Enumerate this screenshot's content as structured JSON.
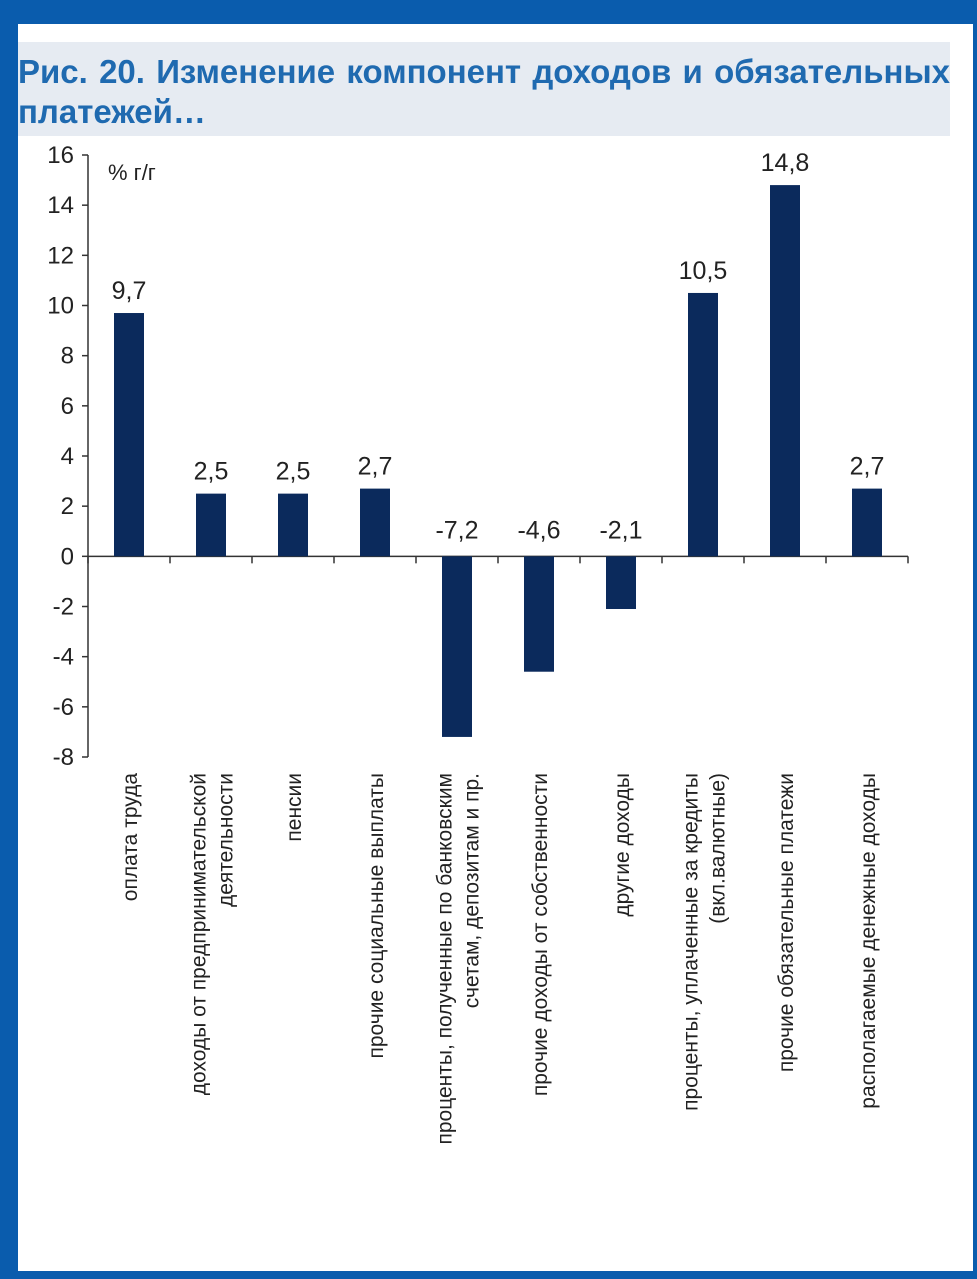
{
  "title": "Рис. 20. Изменение компонент доходов и обязательных платежей…",
  "colors": {
    "frame": "#0a5cad",
    "title": "#1f6ab0",
    "title_band": "#e6ebf2",
    "bar": "#0b2a5c",
    "axis": "#333333",
    "text": "#222222"
  },
  "chart_data": {
    "type": "bar",
    "unit_label": "% г/г",
    "categories": [
      [
        "оплата труда"
      ],
      [
        "доходы от предпринимательской",
        "деятельности"
      ],
      [
        "пенсии"
      ],
      [
        "прочие социальные выплаты"
      ],
      [
        "проценты, полученные по банковским",
        "счетам, депозитам и пр."
      ],
      [
        "прочие доходы от собственности"
      ],
      [
        "другие доходы"
      ],
      [
        "проценты, уплаченные за кредиты",
        "(вкл.валютные)"
      ],
      [
        "прочие обязательные платежи"
      ],
      [
        "располагаемые денежные доходы"
      ]
    ],
    "values": [
      9.7,
      2.5,
      2.5,
      2.7,
      -7.2,
      -4.6,
      -2.1,
      10.5,
      14.8,
      2.7
    ],
    "value_labels": [
      "9,7",
      "2,5",
      "2,5",
      "2,7",
      "-7,2",
      "-4,6",
      "-2,1",
      "10,5",
      "14,8",
      "2,7"
    ],
    "ylim": [
      -8,
      16
    ],
    "yticks": [
      16,
      14,
      12,
      10,
      8,
      6,
      4,
      2,
      0,
      -2,
      -4,
      -6,
      -8
    ],
    "grid": false,
    "legend": "none"
  }
}
